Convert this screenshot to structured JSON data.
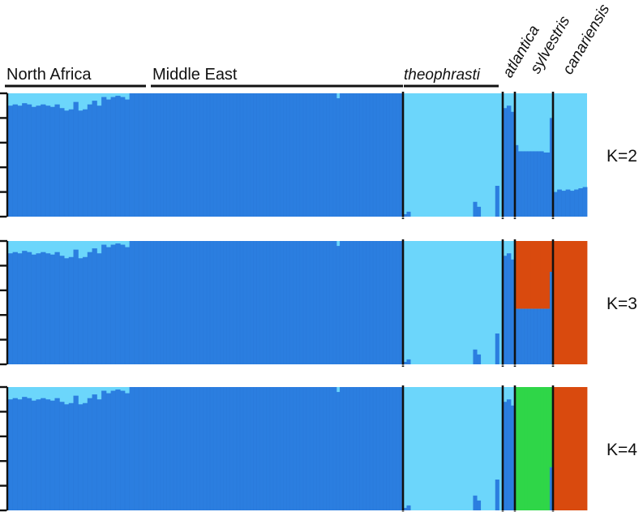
{
  "chart_data": {
    "type": "bar",
    "stacked": true,
    "ylim": [
      0,
      1
    ],
    "group_labels": [
      "North Africa",
      "Middle East",
      "theophrasti",
      "atlantica",
      "sylvestris",
      "canariensis"
    ],
    "panel_labels": [
      "K=2",
      "K=3",
      "K=4"
    ],
    "colors": [
      "#2b7ee0",
      "#6cd6fb",
      "#d94a0e",
      "#2fd648"
    ],
    "groups": [
      {
        "name": "North Africa",
        "label_style": "normal",
        "blue": [
          0.9,
          0.91,
          0.9,
          0.92,
          0.91,
          0.89,
          0.9,
          0.91,
          0.9,
          0.89,
          0.91,
          0.88,
          0.86,
          0.87,
          0.93,
          0.86,
          0.87,
          0.91,
          0.94,
          0.9,
          0.97,
          0.95,
          0.97,
          0.98,
          0.97,
          0.95,
          1,
          1,
          1
        ]
      },
      {
        "name": "Middle East",
        "label_style": "normal",
        "blue": [
          1,
          1,
          1,
          1,
          1,
          1,
          1,
          1,
          1,
          1,
          1,
          1,
          1,
          1,
          1,
          1,
          1,
          1,
          1,
          1,
          1,
          1,
          1,
          1,
          1,
          1,
          1,
          1,
          1,
          1,
          1,
          1,
          1,
          1,
          1,
          1,
          1,
          1,
          1,
          1,
          1,
          1,
          1,
          1,
          1,
          1,
          1,
          1,
          1,
          1,
          1,
          1,
          1,
          1,
          1,
          1,
          1,
          1,
          0.96,
          1,
          1,
          1,
          1,
          1,
          1,
          1,
          1,
          1,
          1,
          1,
          1,
          1,
          1,
          1,
          1,
          1,
          1,
          1
        ]
      },
      {
        "name": "theophrasti",
        "label_style": "italic",
        "blue": [
          0.02,
          0.04,
          0,
          0,
          0,
          0,
          0,
          0,
          0,
          0,
          0,
          0,
          0,
          0,
          0,
          0,
          0,
          0,
          0,
          0.12,
          0.08,
          0,
          0,
          0,
          0,
          0.25,
          0
        ]
      },
      {
        "name": "atlantica",
        "label_style": "italic",
        "blue": [
          0.88,
          0.9,
          0.85
        ]
      },
      {
        "name": "sylvestris",
        "label_style": "italic",
        "blue": [
          0.58,
          0.53,
          0.53,
          0.53,
          0.53,
          0.53,
          0.53,
          0.53,
          0.53,
          0.52,
          0.52,
          0.8
        ]
      },
      {
        "name": "canariensis",
        "label_style": "italic",
        "blue": [
          0.2,
          0.22,
          0.21,
          0.22,
          0.21,
          0.22,
          0.23,
          0.24
        ]
      }
    ],
    "panels": [
      {
        "k": "K=2",
        "note": "sylvestris and canariensis split light-blue / blue"
      },
      {
        "k": "K=3",
        "note": "sylvestris upper part and canariensis fully orange"
      },
      {
        "k": "K=4",
        "note": "sylvestris green, canariensis orange"
      }
    ]
  }
}
